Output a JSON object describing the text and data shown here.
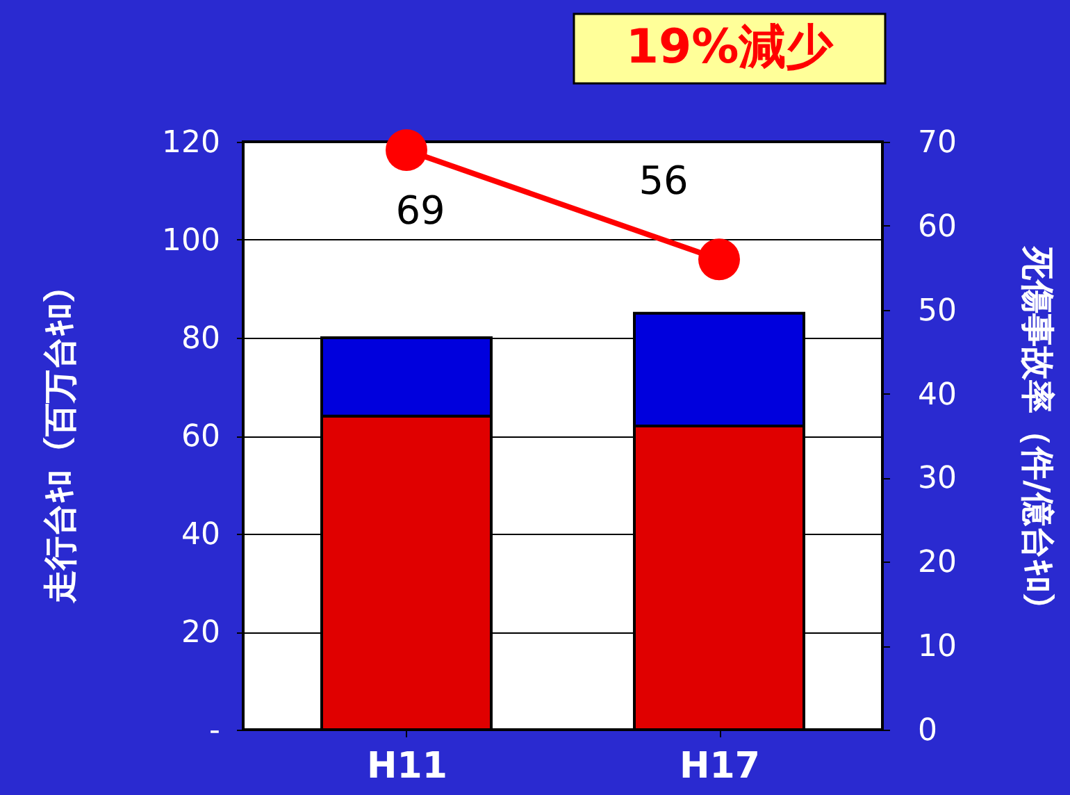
{
  "chart_data": {
    "type": "bar",
    "stacked": true,
    "categories": [
      "H11",
      "H17"
    ],
    "series": [
      {
        "color": "#e00000",
        "values": [
          64,
          62
        ]
      },
      {
        "color": "#0000dd",
        "values": [
          16,
          23
        ]
      },
      {
        "type": "line",
        "axis": "y2",
        "color": "#ff0000",
        "values": [
          69,
          56
        ],
        "value_labels": [
          "69",
          "56"
        ],
        "marker": "circle"
      }
    ],
    "ylabel": "走行台ｷﾛ（百万台ｷﾛ）",
    "y2label": "死傷事故率（件/億台ｷﾛ）",
    "ylim": [
      0,
      120
    ],
    "yticks": [
      {
        "value": 0,
        "label": "-"
      },
      20,
      40,
      60,
      80,
      100,
      120
    ],
    "y2lim": [
      0,
      70
    ],
    "y2ticks": [
      0,
      10,
      20,
      30,
      40,
      50,
      60,
      70
    ],
    "grid": "y",
    "annotations": [
      "19%減少"
    ]
  }
}
